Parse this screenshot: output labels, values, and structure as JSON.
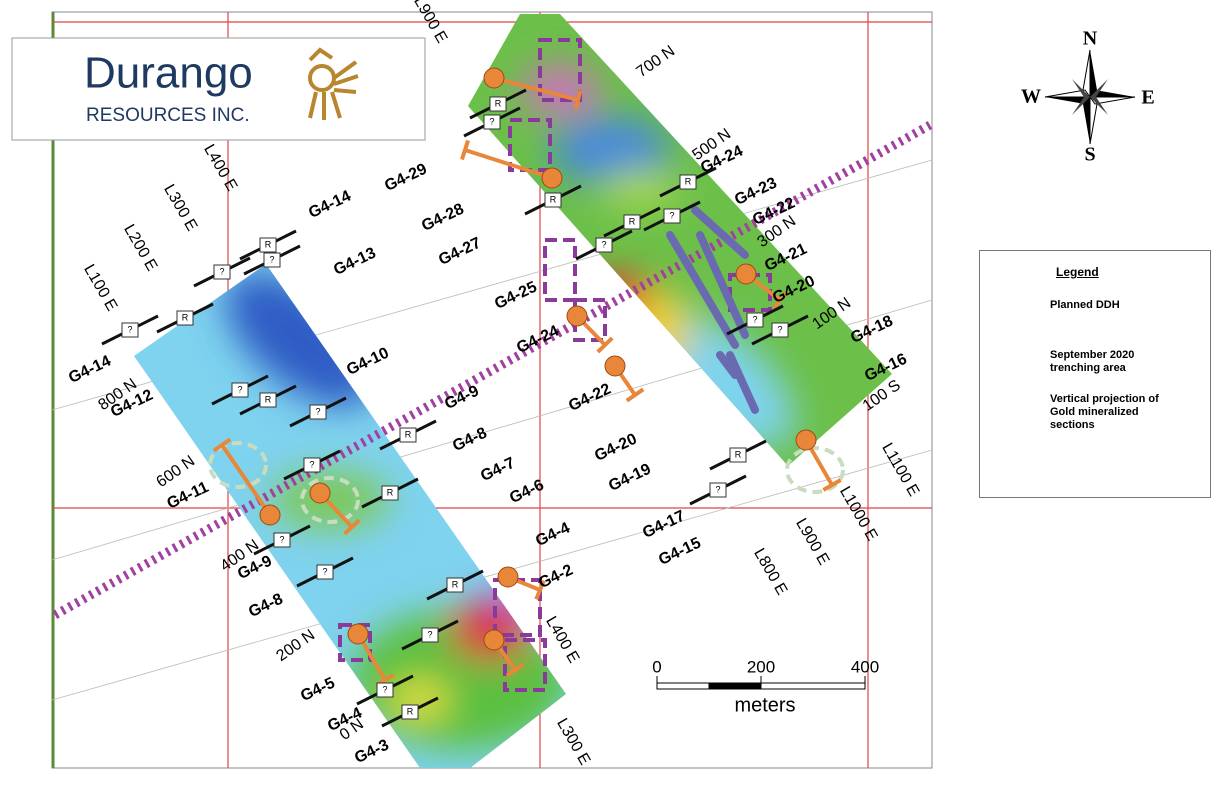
{
  "logo": {
    "name": "Durango",
    "subtitle": "RESOURCES INC."
  },
  "compass": {
    "north": "N",
    "west": "W",
    "east": "E",
    "south": "S"
  },
  "legend": {
    "title": "Legend",
    "items": [
      "Planned DDH",
      "September 2020 trenching area",
      "Vertical projection of Gold mineralized sections"
    ]
  },
  "scale_bar": {
    "ticks": [
      0,
      200,
      400
    ],
    "unit": "meters"
  },
  "grid_labels": [
    "L100 E",
    "L200 E",
    "L300 E",
    "L400 E",
    "L900 E",
    "L400 E",
    "L300 E",
    "L800 E",
    "L900 E",
    "L1000 E",
    "L1100 E",
    "800 N",
    "600 N",
    "400 N",
    "200 N",
    "0 N",
    "700 N",
    "500 N",
    "300 N",
    "100 N",
    "100 S"
  ],
  "line_labels": [
    "G4-14",
    "G4-14",
    "G4-13",
    "G4-12",
    "G4-10",
    "G4-11",
    "G4-9",
    "G4-9",
    "G4-8",
    "G4-8",
    "G4-7",
    "G4-6",
    "G4-5",
    "G4-4",
    "G4-4",
    "G4-3",
    "G4-2",
    "G4-29",
    "G4-28",
    "G4-27",
    "G4-25",
    "G4-24",
    "G4-24",
    "G4-23",
    "G4-22",
    "G4-21",
    "G4-20",
    "G4-22",
    "G4-20",
    "G4-19",
    "G4-18",
    "G4-16",
    "G4-17",
    "G4-15"
  ],
  "station_labels": [
    "?",
    "R",
    "?",
    "R",
    "?",
    "?",
    "R",
    "?",
    "R",
    "?",
    "R",
    "?",
    "?",
    "R",
    "?",
    "R",
    "?",
    "R",
    "?",
    "R",
    "?",
    "R",
    "?",
    "R",
    "?",
    "?",
    "R",
    "?"
  ]
}
